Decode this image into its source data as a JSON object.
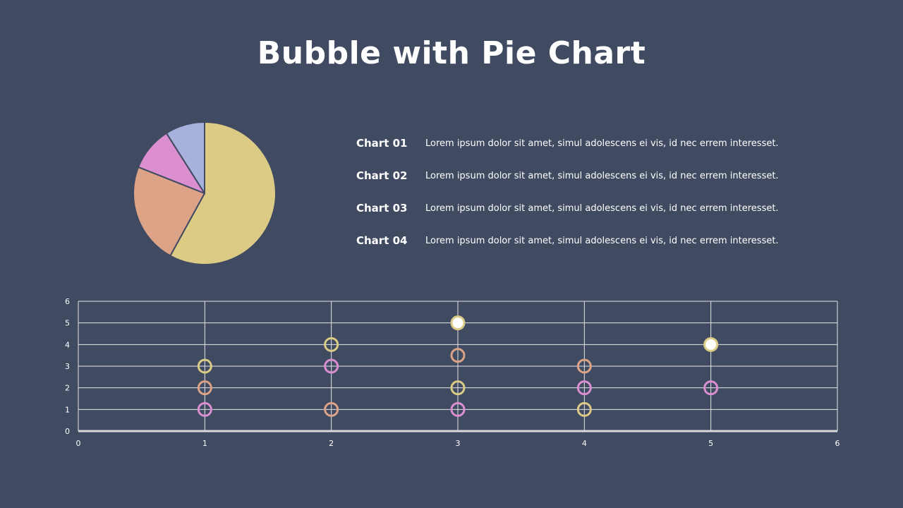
{
  "title": "Bubble with Pie Chart",
  "legend": [
    {
      "label": "Chart 01",
      "text": "Lorem ipsum dolor sit amet, simul adolescens ei vis, id nec errem interesset."
    },
    {
      "label": "Chart 02",
      "text": "Lorem ipsum dolor sit amet, simul adolescens ei vis, id nec errem interesset."
    },
    {
      "label": "Chart 03",
      "text": "Lorem ipsum dolor sit amet, simul adolescens ei vis, id nec errem interesset."
    },
    {
      "label": "Chart 04",
      "text": "Lorem ipsum dolor sit amet, simul adolescens ei vis, id nec errem interesset."
    }
  ],
  "colors": {
    "background": "#404b62",
    "yellow": "#dccb85",
    "salmon": "#dda387",
    "pink": "#db8fd0",
    "lavender": "#a7b1dc",
    "white": "#ffffff",
    "grid": "#e6e6e6"
  },
  "chart_data": [
    {
      "type": "pie",
      "slices": [
        {
          "value": 58,
          "color": "#dccb85"
        },
        {
          "value": 23,
          "color": "#dda387"
        },
        {
          "value": 10,
          "color": "#db8fd0"
        },
        {
          "value": 9,
          "color": "#a7b1dc"
        }
      ]
    },
    {
      "type": "scatter",
      "xlim": [
        0,
        6
      ],
      "ylim": [
        0,
        6
      ],
      "xticks": [
        0,
        1,
        2,
        3,
        4,
        5,
        6
      ],
      "yticks": [
        0,
        1,
        2,
        3,
        4,
        5,
        6
      ],
      "grid": true,
      "points": [
        {
          "x": 1,
          "y": 1,
          "color": "#db8fd0",
          "fill": "none"
        },
        {
          "x": 1,
          "y": 2,
          "color": "#dda387",
          "fill": "none"
        },
        {
          "x": 1,
          "y": 3,
          "color": "#dccb85",
          "fill": "none"
        },
        {
          "x": 2,
          "y": 1,
          "color": "#dda387",
          "fill": "none"
        },
        {
          "x": 2,
          "y": 3,
          "color": "#db8fd0",
          "fill": "none"
        },
        {
          "x": 2,
          "y": 4,
          "color": "#dccb85",
          "fill": "none"
        },
        {
          "x": 3,
          "y": 1,
          "color": "#db8fd0",
          "fill": "none"
        },
        {
          "x": 3,
          "y": 2,
          "color": "#dccb85",
          "fill": "none"
        },
        {
          "x": 3,
          "y": 3.5,
          "color": "#dda387",
          "fill": "none"
        },
        {
          "x": 3,
          "y": 5,
          "color": "#dccb85",
          "fill": "#ffffff"
        },
        {
          "x": 4,
          "y": 1,
          "color": "#dccb85",
          "fill": "none"
        },
        {
          "x": 4,
          "y": 2,
          "color": "#db8fd0",
          "fill": "none"
        },
        {
          "x": 4,
          "y": 3,
          "color": "#dda387",
          "fill": "none"
        },
        {
          "x": 5,
          "y": 2,
          "color": "#db8fd0",
          "fill": "none"
        },
        {
          "x": 5,
          "y": 4,
          "color": "#dccb85",
          "fill": "#ffffff"
        }
      ]
    }
  ]
}
